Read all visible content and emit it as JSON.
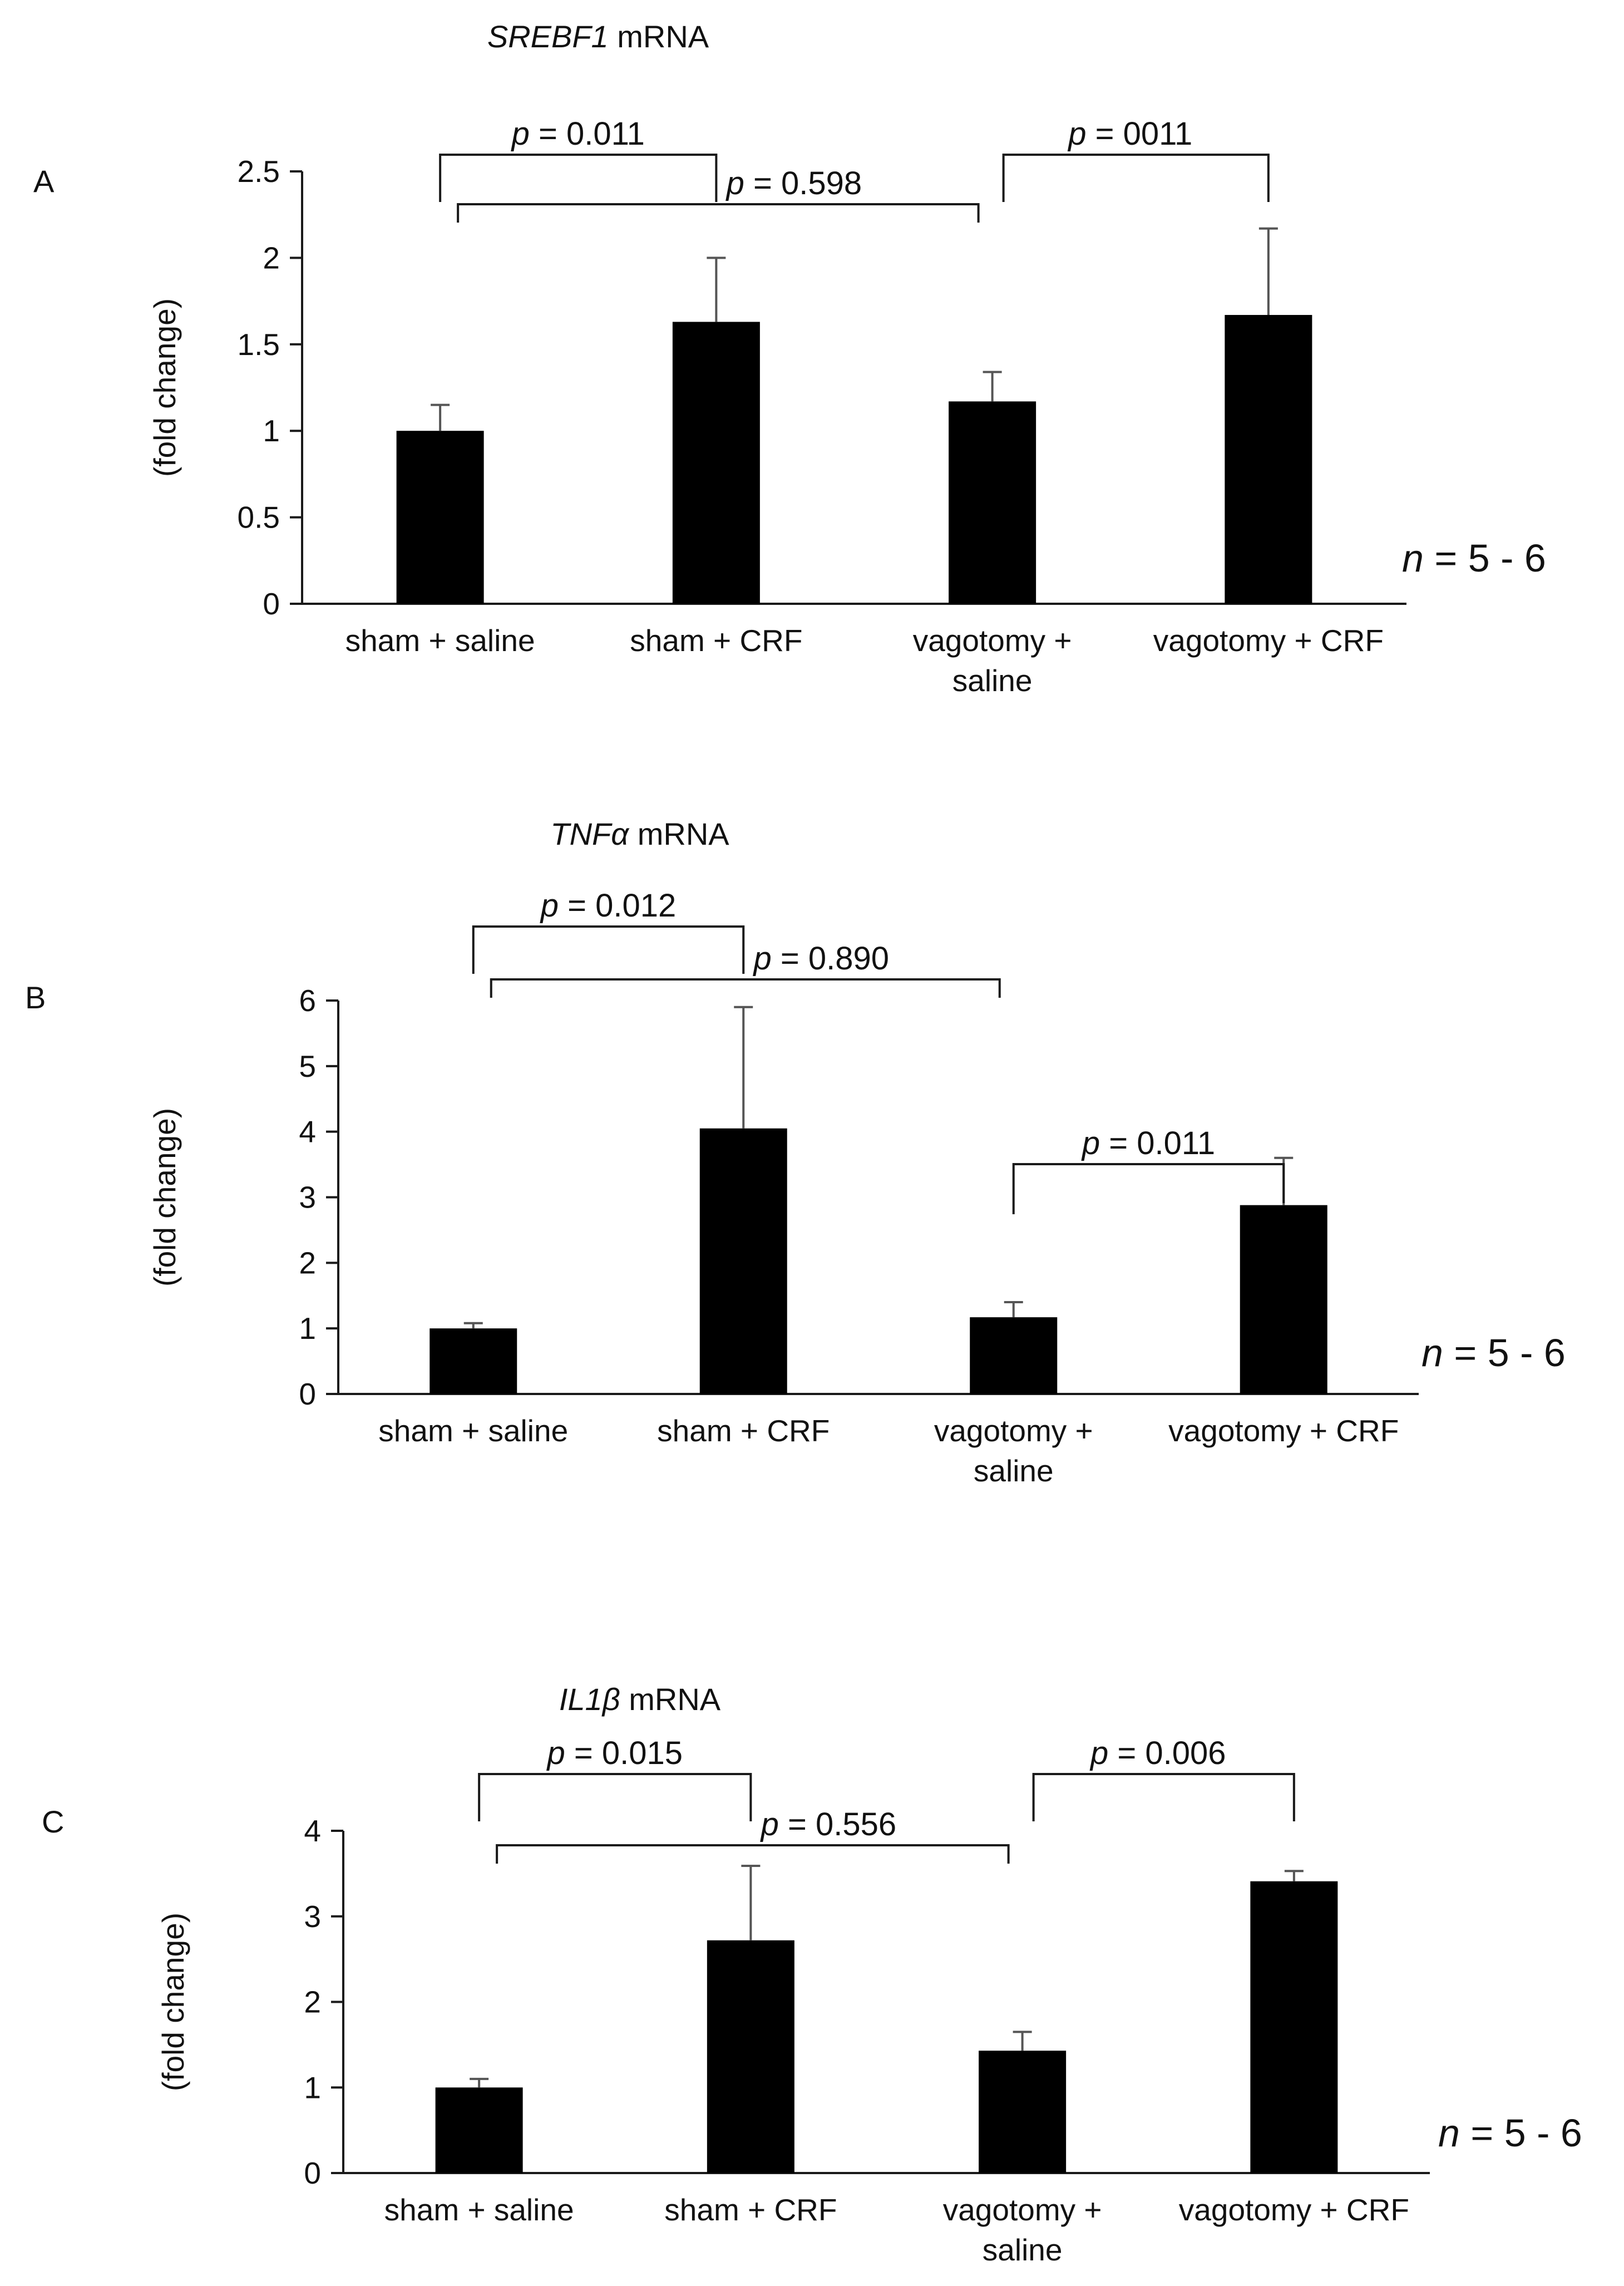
{
  "figure": {
    "bar_color": "#000000",
    "text_color": "#111111"
  },
  "chart_data": [
    {
      "panel_label": "A",
      "type": "bar",
      "title": {
        "gene": "SREBF1",
        "suffix": "mRNA"
      },
      "ylabel": "(fold change)",
      "xlabel": "",
      "ylim": [
        0,
        2.5
      ],
      "yticks": [
        0,
        0.5,
        1,
        1.5,
        2,
        2.5
      ],
      "ytick_labels": [
        "0",
        "0.5",
        "1",
        "1.5",
        "2",
        "2.5"
      ],
      "categories": [
        [
          "sham + saline"
        ],
        [
          "sham + CRF"
        ],
        [
          "vagotomy +",
          "saline"
        ],
        [
          "vagotomy + CRF"
        ]
      ],
      "values": [
        1.0,
        1.63,
        1.17,
        1.67
      ],
      "errors": [
        0.15,
        0.37,
        0.17,
        0.5
      ],
      "annotations": [
        {
          "p_symbol": "p",
          "p_text": " = 0.011",
          "pair": [
            0,
            1
          ],
          "level": 2
        },
        {
          "p_symbol": "p",
          "p_text": " = 0.598",
          "pair": [
            0,
            2
          ],
          "level": 1
        },
        {
          "p_symbol": "p",
          "p_text": " = 0011",
          "pair": [
            2,
            3
          ],
          "level": 2
        }
      ],
      "n_label": {
        "symbol": "n",
        "text": " = 5 - 6"
      }
    },
    {
      "panel_label": "B",
      "type": "bar",
      "title": {
        "gene": "TNFα",
        "suffix": "mRNA"
      },
      "ylabel": "(fold change)",
      "xlabel": "",
      "ylim": [
        0,
        6
      ],
      "yticks": [
        0,
        1,
        2,
        3,
        4,
        5,
        6
      ],
      "ytick_labels": [
        "0",
        "1",
        "2",
        "3",
        "4",
        "5",
        "6"
      ],
      "categories": [
        [
          "sham + saline"
        ],
        [
          "sham + CRF"
        ],
        [
          "vagotomy +",
          "saline"
        ],
        [
          "vagotomy + CRF"
        ]
      ],
      "values": [
        1.0,
        4.05,
        1.17,
        2.88
      ],
      "errors": [
        0.08,
        1.85,
        0.23,
        0.72
      ],
      "annotations": [
        {
          "p_symbol": "p",
          "p_text": " = 0.012",
          "pair": [
            0,
            1
          ],
          "level": 2
        },
        {
          "p_symbol": "p",
          "p_text": " = 0.890",
          "pair": [
            0,
            2
          ],
          "level": 1
        },
        {
          "p_symbol": "p",
          "p_text": " = 0.011",
          "pair": [
            2,
            3
          ],
          "level": 0
        }
      ],
      "n_label": {
        "symbol": "n",
        "text": " = 5 - 6"
      }
    },
    {
      "panel_label": "C",
      "type": "bar",
      "title": {
        "gene": "IL1β",
        "suffix": "mRNA"
      },
      "ylabel": "(fold change)",
      "xlabel": "",
      "ylim": [
        0,
        4
      ],
      "yticks": [
        0,
        1,
        2,
        3,
        4
      ],
      "ytick_labels": [
        "0",
        "1",
        "2",
        "3",
        "4"
      ],
      "categories": [
        [
          "sham + saline"
        ],
        [
          "sham + CRF"
        ],
        [
          "vagotomy +",
          "saline"
        ],
        [
          "vagotomy + CRF"
        ]
      ],
      "values": [
        1.0,
        2.72,
        1.43,
        3.41
      ],
      "errors": [
        0.1,
        0.87,
        0.22,
        0.12
      ],
      "annotations": [
        {
          "p_symbol": "p",
          "p_text": " = 0.015",
          "pair": [
            0,
            1
          ],
          "level": 2
        },
        {
          "p_symbol": "p",
          "p_text": " = 0.556",
          "pair": [
            0,
            2
          ],
          "level": 1
        },
        {
          "p_symbol": "p",
          "p_text": " = 0.006",
          "pair": [
            2,
            3
          ],
          "level": 2
        }
      ],
      "n_label": {
        "symbol": "n",
        "text": " = 5 - 6"
      }
    }
  ]
}
